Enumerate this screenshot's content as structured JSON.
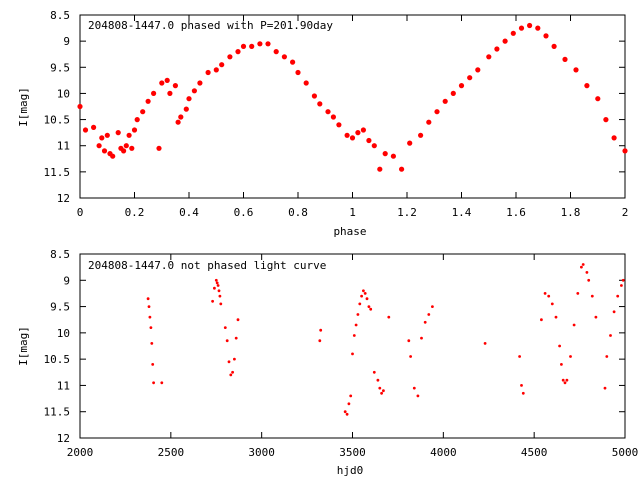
{
  "chart_data": [
    {
      "type": "scatter",
      "title": "204808-1447.0 phased with P=201.90day",
      "xlabel": "phase",
      "ylabel": "I[mag]",
      "xlim": [
        0,
        2
      ],
      "ylim": [
        8.5,
        12
      ],
      "y_inverted": true,
      "x_ticks": [
        0,
        0.2,
        0.4,
        0.6,
        0.8,
        1,
        1.2,
        1.4,
        1.6,
        1.8,
        2
      ],
      "x_tick_labels": [
        "0",
        "0.2",
        "0.4",
        "0.6",
        "0.8",
        "1",
        "1.2",
        "1.4",
        "1.6",
        "1.8",
        "2"
      ],
      "y_ticks": [
        8.5,
        9,
        9.5,
        10,
        10.5,
        11,
        11.5,
        12
      ],
      "y_tick_labels": [
        "8.5",
        "9",
        "9.5",
        "10",
        "10.5",
        "11",
        "11.5",
        "12"
      ],
      "marker_color": "#ff0000",
      "series": [
        {
          "x": [
            0.0,
            0.02,
            0.05,
            0.07,
            0.08,
            0.09,
            0.1,
            0.11,
            0.12,
            0.14,
            0.15,
            0.16,
            0.17,
            0.18,
            0.19,
            0.2,
            0.21,
            0.23,
            0.25,
            0.27,
            0.29,
            0.3,
            0.32,
            0.33,
            0.35,
            0.36,
            0.37,
            0.39,
            0.4,
            0.42,
            0.44,
            0.47,
            0.5,
            0.52,
            0.55,
            0.58,
            0.6,
            0.63,
            0.66,
            0.69,
            0.72,
            0.75,
            0.78,
            0.8,
            0.83,
            0.86,
            0.88,
            0.91,
            0.93,
            0.95,
            0.98,
            1.0,
            1.02,
            1.04,
            1.06,
            1.08,
            1.1,
            1.12,
            1.15,
            1.18,
            1.21,
            1.25,
            1.28,
            1.31,
            1.34,
            1.37,
            1.4,
            1.43,
            1.46,
            1.5,
            1.53,
            1.56,
            1.59,
            1.62,
            1.65,
            1.68,
            1.71,
            1.74,
            1.78,
            1.82,
            1.86,
            1.9,
            1.93,
            1.96,
            2.0
          ],
          "y": [
            10.25,
            10.7,
            10.65,
            11.0,
            10.85,
            11.1,
            10.8,
            11.15,
            11.2,
            10.75,
            11.05,
            11.1,
            11.0,
            10.8,
            11.05,
            10.7,
            10.5,
            10.35,
            10.15,
            10.0,
            11.05,
            9.8,
            9.75,
            10.0,
            9.85,
            10.55,
            10.45,
            10.3,
            10.1,
            9.95,
            9.8,
            9.6,
            9.55,
            9.45,
            9.3,
            9.2,
            9.1,
            9.1,
            9.05,
            9.05,
            9.2,
            9.3,
            9.4,
            9.6,
            9.8,
            10.05,
            10.2,
            10.35,
            10.45,
            10.6,
            10.8,
            10.85,
            10.75,
            10.7,
            10.9,
            11.0,
            11.45,
            11.15,
            11.2,
            11.45,
            10.95,
            10.8,
            10.55,
            10.35,
            10.15,
            10.0,
            9.85,
            9.7,
            9.55,
            9.3,
            9.15,
            9.0,
            8.85,
            8.75,
            8.7,
            8.75,
            8.9,
            9.1,
            9.35,
            9.55,
            9.85,
            10.1,
            10.5,
            10.85,
            11.1
          ]
        }
      ]
    },
    {
      "type": "scatter",
      "title": "204808-1447.0 not phased light curve",
      "xlabel": "hjd0",
      "ylabel": "I[mag]",
      "xlim": [
        2000,
        5000
      ],
      "ylim": [
        8.5,
        12
      ],
      "y_inverted": true,
      "x_ticks": [
        2000,
        2500,
        3000,
        3500,
        4000,
        4500,
        5000
      ],
      "x_tick_labels": [
        "2000",
        "2500",
        "3000",
        "3500",
        "4000",
        "4500",
        "5000"
      ],
      "y_ticks": [
        8.5,
        9,
        9.5,
        10,
        10.5,
        11,
        11.5,
        12
      ],
      "y_tick_labels": [
        "8.5",
        "9",
        "9.5",
        "10",
        "10.5",
        "11",
        "11.5",
        "12"
      ],
      "marker_color": "#ff0000",
      "series": [
        {
          "x": [
            2375,
            2380,
            2385,
            2390,
            2395,
            2400,
            2405,
            2450,
            2730,
            2740,
            2750,
            2755,
            2760,
            2765,
            2770,
            2775,
            2800,
            2810,
            2820,
            2830,
            2840,
            2850,
            2860,
            2870,
            3320,
            3325,
            3460,
            3470,
            3480,
            3490,
            3500,
            3510,
            3520,
            3530,
            3540,
            3550,
            3560,
            3570,
            3580,
            3590,
            3600,
            3620,
            3640,
            3650,
            3660,
            3670,
            3700,
            3810,
            3820,
            3840,
            3860,
            3880,
            3900,
            3920,
            3940,
            4230,
            4420,
            4430,
            4440,
            4540,
            4560,
            4580,
            4600,
            4620,
            4640,
            4650,
            4660,
            4670,
            4680,
            4700,
            4720,
            4740,
            4760,
            4770,
            4790,
            4800,
            4820,
            4840,
            4890,
            4900,
            4920,
            4940,
            4960,
            4980,
            4990
          ],
          "y": [
            9.35,
            9.5,
            9.7,
            9.9,
            10.2,
            10.6,
            10.95,
            10.95,
            9.4,
            9.15,
            9.0,
            9.05,
            9.1,
            9.2,
            9.3,
            9.45,
            9.9,
            10.15,
            10.55,
            10.8,
            10.75,
            10.5,
            10.1,
            9.75,
            10.15,
            9.95,
            11.5,
            11.55,
            11.35,
            11.2,
            10.4,
            10.05,
            9.85,
            9.65,
            9.45,
            9.3,
            9.2,
            9.25,
            9.35,
            9.5,
            9.55,
            10.75,
            10.9,
            11.05,
            11.15,
            11.1,
            9.7,
            10.15,
            10.45,
            11.05,
            11.2,
            10.1,
            9.8,
            9.65,
            9.5,
            10.2,
            10.45,
            11.0,
            11.15,
            9.75,
            9.25,
            9.3,
            9.45,
            9.7,
            10.25,
            10.6,
            10.9,
            10.95,
            10.9,
            10.45,
            9.85,
            9.25,
            8.75,
            8.7,
            8.85,
            9.0,
            9.3,
            9.7,
            11.05,
            10.45,
            10.05,
            9.6,
            9.3,
            9.1,
            9.0
          ]
        }
      ]
    }
  ]
}
